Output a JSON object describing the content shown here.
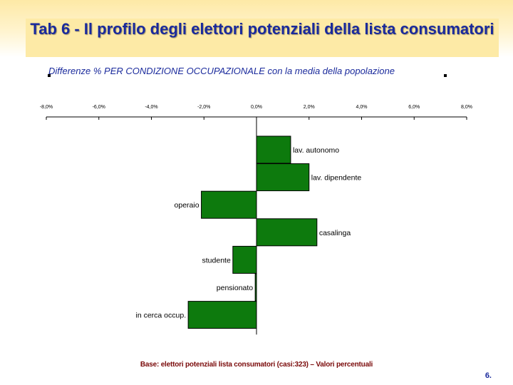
{
  "slide": {
    "title": "Tab 6 - Il profilo degli elettori potenziali della lista consumatori",
    "subtitle": "Differenze % PER CONDIZIONE OCCUPAZIONALE con la media della popolazione",
    "base_note": "Base: elettori potenziali lista consumatori (casi:323) – Valori percentuali",
    "page_number": "6."
  },
  "chart_data": {
    "type": "bar",
    "orientation": "horizontal",
    "title": "Differenze % PER CONDIZIONE OCCUPAZIONALE con la media della popolazione",
    "categories": [
      "lav. autonomo",
      "lav. dipendente",
      "operaio",
      "casalinga",
      "studente",
      "pensionato",
      "in cerca occup."
    ],
    "values": [
      1.3,
      2.0,
      -2.1,
      2.3,
      -0.9,
      -0.05,
      -2.6
    ],
    "xlim": [
      -8,
      8
    ],
    "x_ticks": [
      "-8,0%",
      "-6,0%",
      "-4,0%",
      "-2,0%",
      "0,0%",
      "2,0%",
      "4,0%",
      "6,0%",
      "8,0%"
    ],
    "x_tick_values": [
      -8,
      -6,
      -4,
      -2,
      0,
      2,
      4,
      6,
      8
    ],
    "axis_position": "top",
    "grid": false,
    "bar_color": "#0d7a0d"
  }
}
